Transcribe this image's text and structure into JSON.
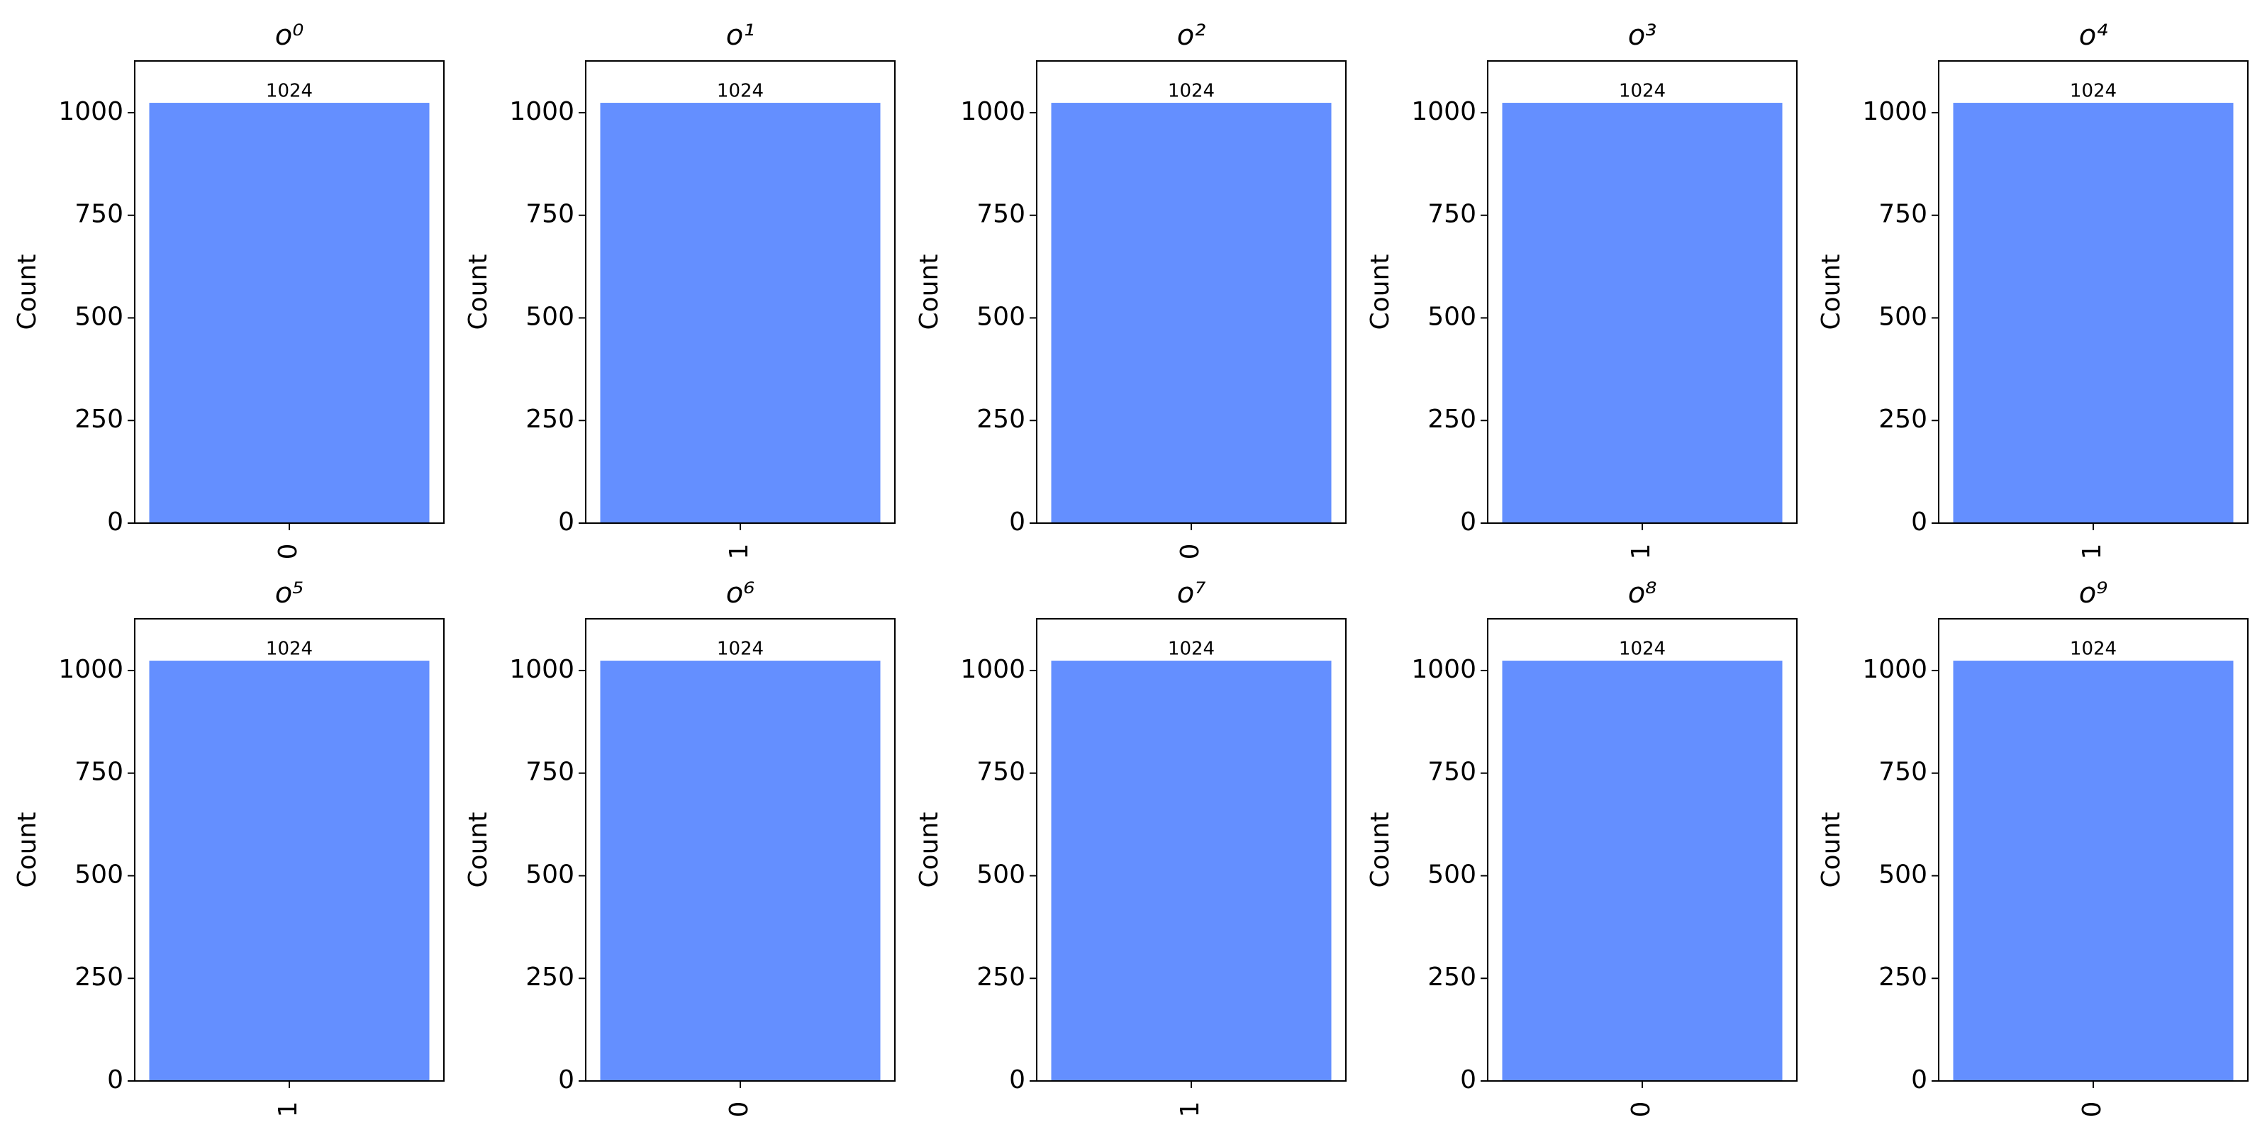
{
  "chart_data": [
    {
      "type": "bar",
      "title": "o⁰",
      "ylabel": "Count",
      "categories": [
        "0"
      ],
      "values": [
        1024
      ],
      "color": "#648fff",
      "ylim": [
        0,
        1126
      ],
      "yticks": [
        0,
        250,
        500,
        750,
        1000
      ]
    },
    {
      "type": "bar",
      "title": "o¹",
      "ylabel": "Count",
      "categories": [
        "1"
      ],
      "values": [
        1024
      ],
      "color": "#648fff",
      "ylim": [
        0,
        1126
      ],
      "yticks": [
        0,
        250,
        500,
        750,
        1000
      ]
    },
    {
      "type": "bar",
      "title": "o²",
      "ylabel": "Count",
      "categories": [
        "0"
      ],
      "values": [
        1024
      ],
      "color": "#648fff",
      "ylim": [
        0,
        1126
      ],
      "yticks": [
        0,
        250,
        500,
        750,
        1000
      ]
    },
    {
      "type": "bar",
      "title": "o³",
      "ylabel": "Count",
      "categories": [
        "1"
      ],
      "values": [
        1024
      ],
      "color": "#648fff",
      "ylim": [
        0,
        1126
      ],
      "yticks": [
        0,
        250,
        500,
        750,
        1000
      ]
    },
    {
      "type": "bar",
      "title": "o⁴",
      "ylabel": "Count",
      "categories": [
        "1"
      ],
      "values": [
        1024
      ],
      "color": "#648fff",
      "ylim": [
        0,
        1126
      ],
      "yticks": [
        0,
        250,
        500,
        750,
        1000
      ]
    },
    {
      "type": "bar",
      "title": "o⁵",
      "ylabel": "Count",
      "categories": [
        "1"
      ],
      "values": [
        1024
      ],
      "color": "#648fff",
      "ylim": [
        0,
        1126
      ],
      "yticks": [
        0,
        250,
        500,
        750,
        1000
      ]
    },
    {
      "type": "bar",
      "title": "o⁶",
      "ylabel": "Count",
      "categories": [
        "0"
      ],
      "values": [
        1024
      ],
      "color": "#648fff",
      "ylim": [
        0,
        1126
      ],
      "yticks": [
        0,
        250,
        500,
        750,
        1000
      ]
    },
    {
      "type": "bar",
      "title": "o⁷",
      "ylabel": "Count",
      "categories": [
        "1"
      ],
      "values": [
        1024
      ],
      "color": "#648fff",
      "ylim": [
        0,
        1126
      ],
      "yticks": [
        0,
        250,
        500,
        750,
        1000
      ]
    },
    {
      "type": "bar",
      "title": "o⁸",
      "ylabel": "Count",
      "categories": [
        "0"
      ],
      "values": [
        1024
      ],
      "color": "#648fff",
      "ylim": [
        0,
        1126
      ],
      "yticks": [
        0,
        250,
        500,
        750,
        1000
      ]
    },
    {
      "type": "bar",
      "title": "o⁹",
      "ylabel": "Count",
      "categories": [
        "0"
      ],
      "values": [
        1024
      ],
      "color": "#648fff",
      "ylim": [
        0,
        1126
      ],
      "yticks": [
        0,
        250,
        500,
        750,
        1000
      ]
    }
  ]
}
